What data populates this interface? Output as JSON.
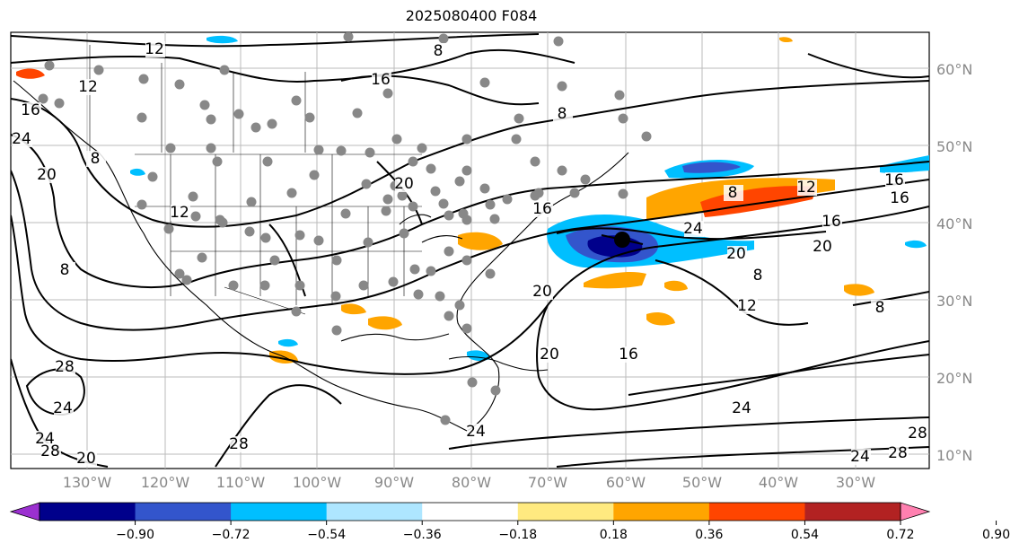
{
  "title": "2025080400 F084",
  "lat_labels": [
    "60°N",
    "50°N",
    "40°N",
    "30°N",
    "20°N",
    "10°N"
  ],
  "lon_labels": [
    "130°W",
    "120°W",
    "110°W",
    "100°W",
    "90°W",
    "80°W",
    "70°W",
    "60°W",
    "50°W",
    "40°W",
    "30°W"
  ],
  "contour_labels": [
    "12",
    "8",
    "16",
    "12",
    "16",
    "24",
    "20",
    "8",
    "8",
    "12",
    "20",
    "8",
    "16",
    "20",
    "8",
    "24",
    "12",
    "16",
    "20",
    "16",
    "16",
    "20",
    "12",
    "8",
    "16",
    "20",
    "24",
    "28",
    "24",
    "28",
    "24",
    "28",
    "20",
    "24",
    "28",
    "24",
    "28",
    "8"
  ],
  "colorbar": {
    "ticks": [
      "−0.90",
      "−0.72",
      "−0.54",
      "−0.36",
      "−0.18",
      "0.18",
      "0.36",
      "0.54",
      "0.72",
      "0.90"
    ],
    "colors": [
      "#9b30d0",
      "#00008b",
      "#3355cc",
      "#00bfff",
      "#aee6ff",
      "#ffffff",
      "#ffea80",
      "#ffa500",
      "#ff4500",
      "#b22222",
      "#ff80b0"
    ]
  },
  "colors": {
    "warm_light": "#ffa500",
    "warm_dark": "#ff4500",
    "cool_light": "#00bfff",
    "cool_dark": "#3355cc",
    "cool_darkest": "#00008b",
    "station": "#888888"
  }
}
